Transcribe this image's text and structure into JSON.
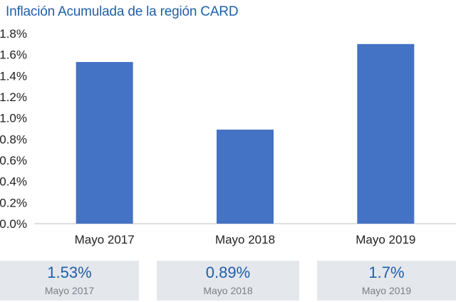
{
  "title": "Inflación Acumulada de la región CARD",
  "chart_data": {
    "type": "bar",
    "categories": [
      "Mayo 2017",
      "Mayo 2018",
      "Mayo 2019"
    ],
    "values": [
      1.53,
      0.89,
      1.7
    ],
    "ylim": [
      0,
      1.8
    ],
    "yticks": [
      "0.0%",
      "0.2%",
      "0.4%",
      "0.6%",
      "0.8%",
      "1.0%",
      "1.2%",
      "1.4%",
      "1.6%",
      "1.8%"
    ],
    "grid": false,
    "bar_color": "#4472c4"
  },
  "cards": [
    {
      "value": "1.53%",
      "label": "Mayo 2017"
    },
    {
      "value": "0.89%",
      "label": "Mayo 2018"
    },
    {
      "value": "1.7%",
      "label": "Mayo 2019"
    }
  ]
}
